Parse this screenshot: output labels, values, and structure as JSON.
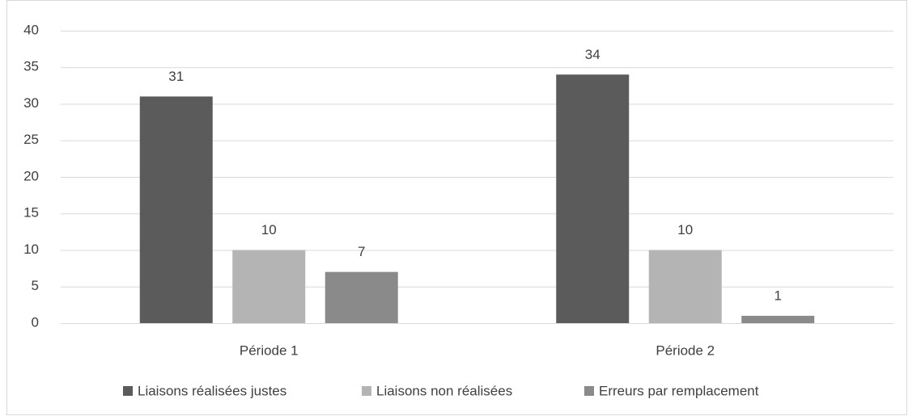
{
  "chart_data": {
    "type": "bar",
    "categories": [
      "Période 1",
      "Période 2"
    ],
    "series": [
      {
        "name": "Liaisons réalisées justes",
        "color": "#5b5b5b",
        "values": [
          31,
          34
        ]
      },
      {
        "name": "Liaisons non réalisées",
        "color": "#b4b4b4",
        "values": [
          10,
          10
        ]
      },
      {
        "name": "Erreurs par remplacement",
        "color": "#8a8a8a",
        "values": [
          7,
          1
        ]
      }
    ],
    "ylim": [
      0,
      40
    ],
    "yticks": [
      0,
      5,
      10,
      15,
      20,
      25,
      30,
      35,
      40
    ],
    "grid": true,
    "legend": "bottom"
  }
}
